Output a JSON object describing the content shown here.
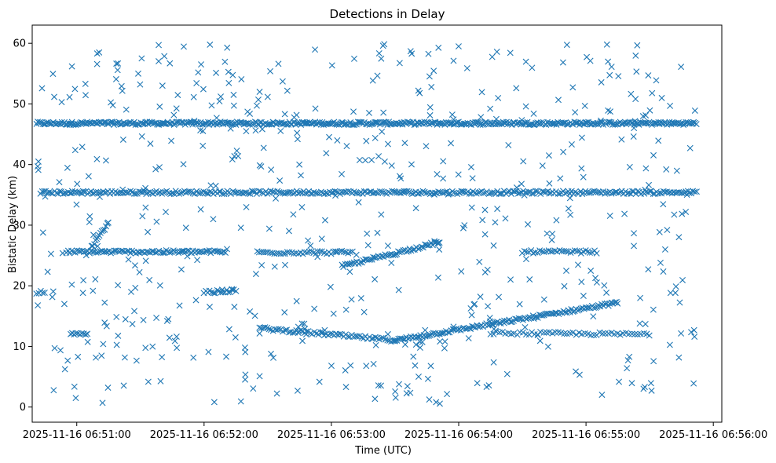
{
  "chart_data": {
    "type": "scatter",
    "title": "Detections in Delay",
    "xlabel": "Time (UTC)",
    "ylabel": "Bistatic Delay (km)",
    "x_unit": "seconds",
    "xlim": [
      "2025-11-16 06:50:39",
      "2025-11-16 06:56:04"
    ],
    "ylim": [
      -2.5,
      63
    ],
    "x_ticks": [
      {
        "t": "2025-11-16 06:51:00",
        "label": "2025-11-16 06:51:00"
      },
      {
        "t": "2025-11-16 06:52:00",
        "label": "2025-11-16 06:52:00"
      },
      {
        "t": "2025-11-16 06:53:00",
        "label": "2025-11-16 06:53:00"
      },
      {
        "t": "2025-11-16 06:54:00",
        "label": "2025-11-16 06:54:00"
      },
      {
        "t": "2025-11-16 06:55:00",
        "label": "2025-11-16 06:55:00"
      },
      {
        "t": "2025-11-16 06:56:00",
        "label": "2025-11-16 06:56:00"
      }
    ],
    "y_ticks": [
      0,
      10,
      20,
      30,
      40,
      50,
      60
    ],
    "marker": "x",
    "color": "#1f77b4",
    "grid": false,
    "series_bands": [
      {
        "t_start": "2025-11-16 06:50:41",
        "t_end": "2025-11-16 06:55:52",
        "y_start": 46.8,
        "y_end": 46.8,
        "count": 520
      },
      {
        "t_start": "2025-11-16 06:50:43",
        "t_end": "2025-11-16 06:55:52",
        "y_start": 35.4,
        "y_end": 35.4,
        "count": 380
      },
      {
        "t_start": "2025-11-16 06:50:55",
        "t_end": "2025-11-16 06:52:10",
        "y_start": 25.6,
        "y_end": 25.6,
        "count": 90
      },
      {
        "t_start": "2025-11-16 06:52:25",
        "t_end": "2025-11-16 06:53:10",
        "y_start": 25.5,
        "y_end": 25.5,
        "count": 45
      },
      {
        "t_start": "2025-11-16 06:54:30",
        "t_end": "2025-11-16 06:55:05",
        "y_start": 25.6,
        "y_end": 25.6,
        "count": 35
      },
      {
        "t_start": "2025-11-16 06:52:00",
        "t_end": "2025-11-16 06:52:15",
        "y_start": 18.9,
        "y_end": 19.2,
        "count": 18
      },
      {
        "t_start": "2025-11-16 06:53:05",
        "t_end": "2025-11-16 06:53:51",
        "y_start": 23.2,
        "y_end": 27.2,
        "count": 60
      },
      {
        "t_start": "2025-11-16 06:52:26",
        "t_end": "2025-11-16 06:53:30",
        "y_start": 13.0,
        "y_end": 11.0,
        "count": 70
      },
      {
        "t_start": "2025-11-16 06:53:30",
        "t_end": "2025-11-16 06:55:15",
        "y_start": 11.0,
        "y_end": 17.2,
        "count": 140
      },
      {
        "t_start": "2025-11-16 06:54:15",
        "t_end": "2025-11-16 06:55:30",
        "y_start": 12.2,
        "y_end": 12.0,
        "count": 55
      },
      {
        "t_start": "2025-11-16 06:50:57",
        "t_end": "2025-11-16 06:51:05",
        "y_start": 12.2,
        "y_end": 12.2,
        "count": 10
      },
      {
        "t_start": "2025-11-16 06:51:07",
        "t_end": "2025-11-16 06:51:15",
        "y_start": 26.5,
        "y_end": 30.4,
        "count": 14
      },
      {
        "t_start": "2025-11-16 06:50:41",
        "t_end": "2025-11-16 06:50:45",
        "y_start": 18.9,
        "y_end": 18.9,
        "count": 5
      }
    ],
    "scatter_noise": {
      "t_start": "2025-11-16 06:50:41",
      "t_end": "2025-11-16 06:55:52",
      "y_min": 0.5,
      "y_max": 60,
      "count": 560
    }
  }
}
